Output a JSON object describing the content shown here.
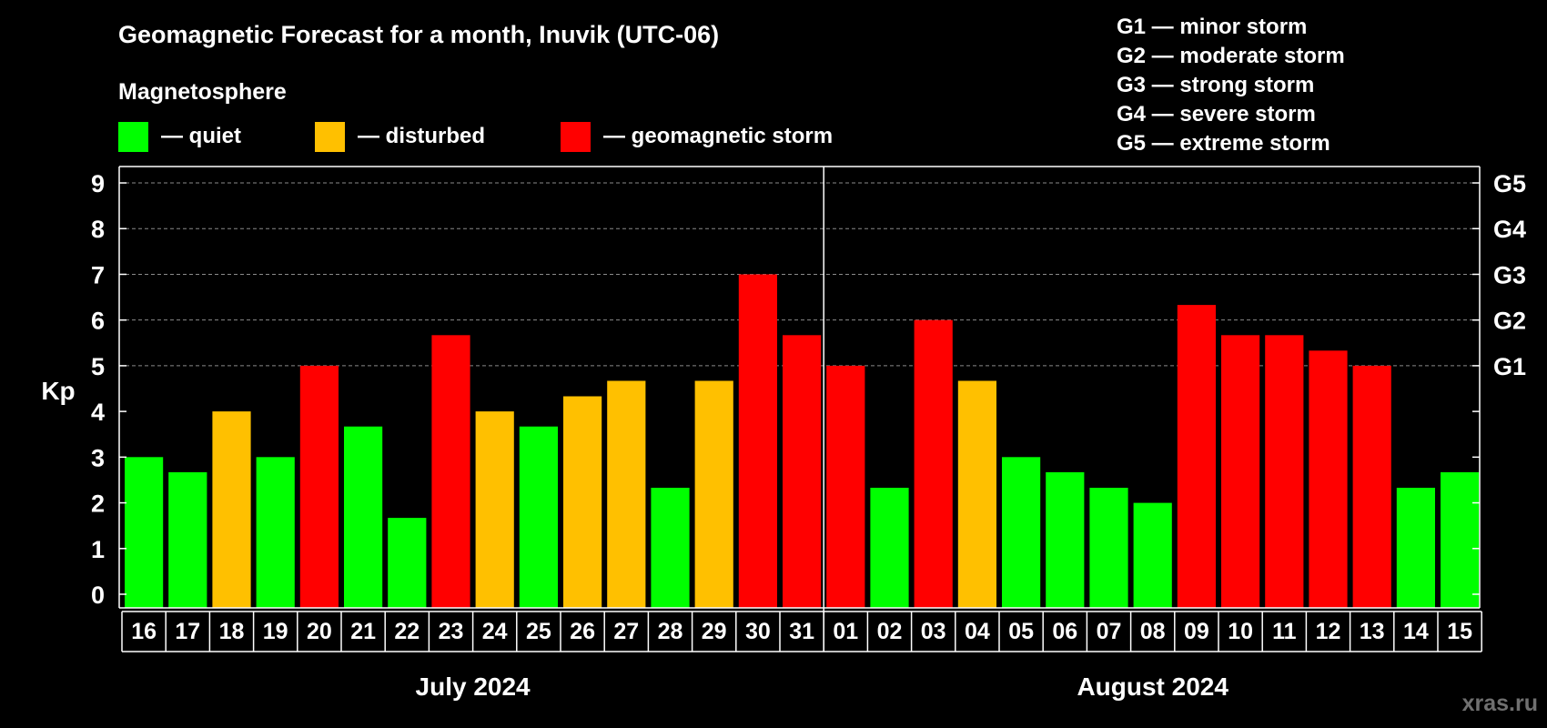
{
  "chart_data": {
    "type": "bar",
    "title": "Geomagnetic Forecast for a month, Inuvik (UTC-06)",
    "subtitle": "Magnetosphere",
    "ylabel": "Kp",
    "ylim": [
      0,
      9
    ],
    "yticks": [
      "0",
      "1",
      "2",
      "3",
      "4",
      "5",
      "6",
      "7",
      "8",
      "9"
    ],
    "grid": true,
    "legend": [
      {
        "label": "— quiet",
        "color": "#00ff00"
      },
      {
        "label": "— disturbed",
        "color": "#ffc000"
      },
      {
        "label": "— geomagnetic storm",
        "color": "#ff0000"
      }
    ],
    "storm_legend": [
      "G1 — minor storm",
      "G2 — moderate storm",
      "G3 — strong storm",
      "G4 — severe storm",
      "G5 — extreme storm"
    ],
    "g_levels": [
      {
        "label": "G1",
        "kp": 5
      },
      {
        "label": "G2",
        "kp": 6
      },
      {
        "label": "G3",
        "kp": 7
      },
      {
        "label": "G4",
        "kp": 8
      },
      {
        "label": "G5",
        "kp": 9
      }
    ],
    "months": [
      {
        "label": "July 2024",
        "days": [
          "16",
          "17",
          "18",
          "19",
          "20",
          "21",
          "22",
          "23",
          "24",
          "25",
          "26",
          "27",
          "28",
          "29",
          "30",
          "31"
        ]
      },
      {
        "label": "August 2024",
        "days": [
          "01",
          "02",
          "03",
          "04",
          "05",
          "06",
          "07",
          "08",
          "09",
          "10",
          "11",
          "12",
          "13",
          "14",
          "15"
        ]
      }
    ],
    "categories": [
      "16",
      "17",
      "18",
      "19",
      "20",
      "21",
      "22",
      "23",
      "24",
      "25",
      "26",
      "27",
      "28",
      "29",
      "30",
      "31",
      "01",
      "02",
      "03",
      "04",
      "05",
      "06",
      "07",
      "08",
      "09",
      "10",
      "11",
      "12",
      "13",
      "14",
      "15"
    ],
    "values": [
      3,
      2.67,
      4,
      3,
      5,
      3.67,
      1.67,
      5.67,
      4,
      3.67,
      4.33,
      4.67,
      2.33,
      4.67,
      7,
      5.67,
      5,
      2.33,
      6,
      4.67,
      3,
      2.67,
      2.33,
      2,
      6.33,
      5.67,
      5.67,
      5.33,
      5,
      2.33,
      2.67
    ],
    "levels": [
      "quiet",
      "quiet",
      "disturbed",
      "quiet",
      "storm",
      "quiet",
      "quiet",
      "storm",
      "disturbed",
      "quiet",
      "disturbed",
      "disturbed",
      "quiet",
      "disturbed",
      "storm",
      "storm",
      "storm",
      "quiet",
      "storm",
      "disturbed",
      "quiet",
      "quiet",
      "quiet",
      "quiet",
      "storm",
      "storm",
      "storm",
      "storm",
      "storm",
      "quiet",
      "quiet"
    ],
    "level_colors": {
      "quiet": "#00ff00",
      "disturbed": "#ffc000",
      "storm": "#ff0000"
    }
  },
  "watermark": "xras.ru"
}
